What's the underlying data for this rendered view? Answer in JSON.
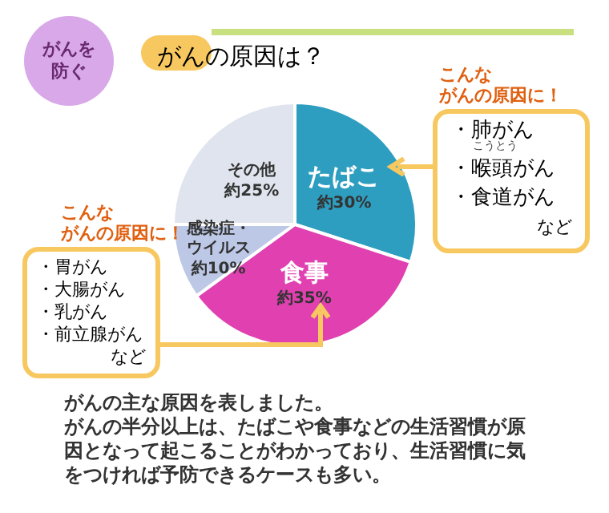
{
  "chart_data": {
    "type": "pie",
    "title": "がんの原因は？",
    "categories": [
      "たばこ",
      "食事",
      "感染症・ウイルス",
      "その他"
    ],
    "values": [
      30,
      35,
      10,
      25
    ],
    "value_labels": [
      "約30%",
      "約35%",
      "約10%",
      "約25%"
    ],
    "colors": [
      "#2e9ec0",
      "#e040b0",
      "#bcc8e6",
      "#dfe4ee"
    ],
    "annotations": [
      "がんを防ぐ",
      "こんな",
      "がんの原因に！",
      "・肺がん",
      "・喉頭がん",
      "こうとう",
      "・食道がん",
      "など",
      "こんな",
      "がんの原因に！",
      "・胃がん",
      "・大腸がん",
      "・乳がん",
      "・前立腺がん",
      "など",
      "がんの主な原因を表しました。",
      "がんの半分以上は、たばこや食事などの生活習慣が原因となって起こることがわかっており、生活習慣に気をつければ予防できるケースも多い。"
    ],
    "legend": false
  }
}
